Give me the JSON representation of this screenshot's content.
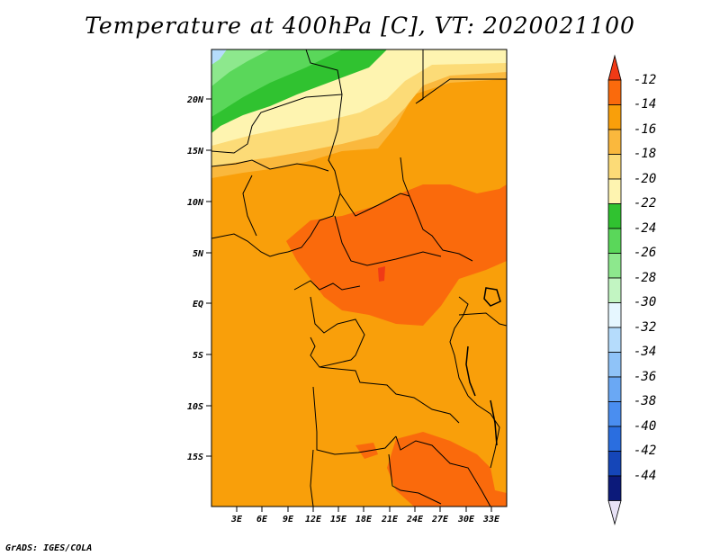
{
  "title": "Temperature at 400hPa [C], VT: 2020021100",
  "footer": "GrADS: IGES/COLA",
  "map": {
    "lat_ticks": [
      "20N",
      "15N",
      "10N",
      "5N",
      "EQ",
      "5S",
      "10S",
      "15S"
    ],
    "lon_ticks": [
      "3E",
      "6E",
      "9E",
      "12E",
      "15E",
      "18E",
      "21E",
      "24E",
      "27E",
      "30E",
      "33E"
    ]
  },
  "legend": {
    "labels": [
      "-12",
      "-14",
      "-16",
      "-18",
      "-20",
      "-22",
      "-24",
      "-26",
      "-28",
      "-30",
      "-32",
      "-34",
      "-36",
      "-38",
      "-40",
      "-42",
      "-44"
    ],
    "colors": [
      "#f03a16",
      "#fa6a0c",
      "#f99f0a",
      "#fab83d",
      "#fcdb77",
      "#fef4b0",
      "#30c230",
      "#5ad75a",
      "#8de88d",
      "#c2f5c2",
      "#e6f7ff",
      "#b5dcfc",
      "#8fc3f8",
      "#6aa8f4",
      "#4a8ef0",
      "#2a6ee0",
      "#1546b8",
      "#0c1a7a",
      "#e8e2f6"
    ]
  }
}
